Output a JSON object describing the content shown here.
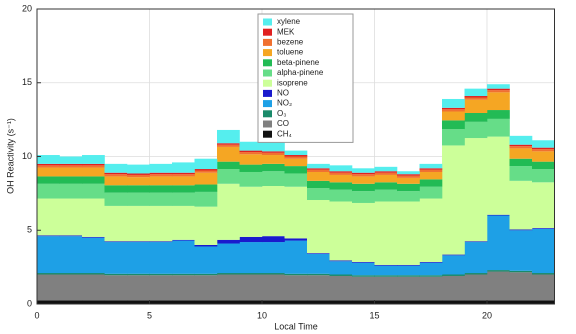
{
  "chart_data": {
    "type": "stacked-step",
    "x_label": "Local Time",
    "y_label": "OH Reactivity (s⁻¹)",
    "x": [
      0,
      1,
      2,
      3,
      4,
      5,
      6,
      7,
      8,
      9,
      10,
      11,
      12,
      13,
      14,
      15,
      16,
      17,
      18,
      19,
      20,
      21,
      22
    ],
    "xlim": [
      0,
      23
    ],
    "xticks": [
      0,
      5,
      10,
      15,
      20
    ],
    "ylim": [
      0,
      20
    ],
    "yticks": [
      0,
      5,
      10,
      15,
      20
    ],
    "grid": true,
    "series": [
      {
        "name": "CH₄",
        "color": "#111111",
        "values": [
          0.25,
          0.25,
          0.25,
          0.25,
          0.25,
          0.25,
          0.25,
          0.25,
          0.25,
          0.25,
          0.25,
          0.25,
          0.25,
          0.25,
          0.25,
          0.25,
          0.25,
          0.25,
          0.25,
          0.25,
          0.25,
          0.25,
          0.25
        ]
      },
      {
        "name": "CO",
        "color": "#808080",
        "values": [
          1.75,
          1.75,
          1.75,
          1.7,
          1.7,
          1.7,
          1.7,
          1.7,
          1.75,
          1.75,
          1.75,
          1.7,
          1.7,
          1.65,
          1.6,
          1.6,
          1.6,
          1.6,
          1.65,
          1.75,
          1.95,
          1.9,
          1.75
        ]
      },
      {
        "name": "O₃",
        "color": "#1a8a6a",
        "values": [
          0.1,
          0.1,
          0.1,
          0.1,
          0.1,
          0.1,
          0.1,
          0.1,
          0.1,
          0.1,
          0.1,
          0.1,
          0.1,
          0.1,
          0.1,
          0.1,
          0.1,
          0.1,
          0.1,
          0.1,
          0.1,
          0.1,
          0.1
        ]
      },
      {
        "name": "NO₂",
        "color": "#1ea0e6",
        "values": [
          2.5,
          2.5,
          2.4,
          2.15,
          2.15,
          2.15,
          2.25,
          1.85,
          2.0,
          2.1,
          2.1,
          2.25,
          1.35,
          0.9,
          0.85,
          0.65,
          0.65,
          0.85,
          1.3,
          2.1,
          3.7,
          2.75,
          3.0
        ]
      },
      {
        "name": "NO",
        "color": "#1a1acd",
        "values": [
          0.05,
          0.05,
          0.05,
          0.05,
          0.05,
          0.05,
          0.05,
          0.1,
          0.25,
          0.35,
          0.4,
          0.15,
          0.05,
          0.05,
          0.05,
          0.05,
          0.05,
          0.05,
          0.05,
          0.05,
          0.05,
          0.05,
          0.05
        ]
      },
      {
        "name": "isoprene",
        "color": "#ccff99",
        "values": [
          2.5,
          2.5,
          2.6,
          2.4,
          2.4,
          2.4,
          2.3,
          2.6,
          3.8,
          3.4,
          3.4,
          3.5,
          3.6,
          4.0,
          4.0,
          4.3,
          4.3,
          4.3,
          7.4,
          7.0,
          5.3,
          3.3,
          3.1
        ]
      },
      {
        "name": "alpha-pinene",
        "color": "#66dd88",
        "values": [
          1.0,
          1.0,
          1.0,
          0.9,
          0.9,
          0.9,
          0.9,
          1.0,
          1.0,
          1.0,
          1.0,
          0.9,
          0.8,
          0.8,
          0.8,
          0.8,
          0.7,
          0.8,
          1.1,
          1.1,
          1.2,
          1.0,
          0.9
        ]
      },
      {
        "name": "beta-pinene",
        "color": "#22bb55",
        "values": [
          0.5,
          0.5,
          0.5,
          0.5,
          0.5,
          0.5,
          0.5,
          0.5,
          0.5,
          0.5,
          0.5,
          0.5,
          0.5,
          0.5,
          0.5,
          0.5,
          0.5,
          0.5,
          0.6,
          0.6,
          0.6,
          0.5,
          0.5
        ]
      },
      {
        "name": "toluene",
        "color": "#f5a623",
        "values": [
          0.6,
          0.6,
          0.6,
          0.6,
          0.55,
          0.6,
          0.6,
          0.8,
          1.0,
          0.7,
          0.6,
          0.5,
          0.6,
          0.5,
          0.5,
          0.5,
          0.4,
          0.5,
          0.6,
          0.9,
          1.2,
          0.7,
          0.7
        ]
      },
      {
        "name": "bezene",
        "color": "#f07030",
        "values": [
          0.15,
          0.15,
          0.15,
          0.15,
          0.15,
          0.15,
          0.15,
          0.15,
          0.15,
          0.15,
          0.15,
          0.15,
          0.15,
          0.15,
          0.15,
          0.15,
          0.15,
          0.15,
          0.15,
          0.15,
          0.15,
          0.15,
          0.15
        ]
      },
      {
        "name": "MEK",
        "color": "#e02020",
        "values": [
          0.1,
          0.1,
          0.1,
          0.1,
          0.1,
          0.1,
          0.1,
          0.1,
          0.1,
          0.1,
          0.1,
          0.1,
          0.1,
          0.1,
          0.1,
          0.1,
          0.1,
          0.1,
          0.1,
          0.1,
          0.1,
          0.1,
          0.1
        ]
      },
      {
        "name": "xylene",
        "color": "#55eeee",
        "values": [
          0.6,
          0.5,
          0.6,
          0.6,
          0.6,
          0.6,
          0.7,
          0.7,
          0.9,
          0.6,
          0.6,
          0.3,
          0.3,
          0.4,
          0.3,
          0.3,
          0.2,
          0.3,
          0.6,
          0.5,
          0.3,
          0.6,
          0.5
        ]
      }
    ]
  }
}
